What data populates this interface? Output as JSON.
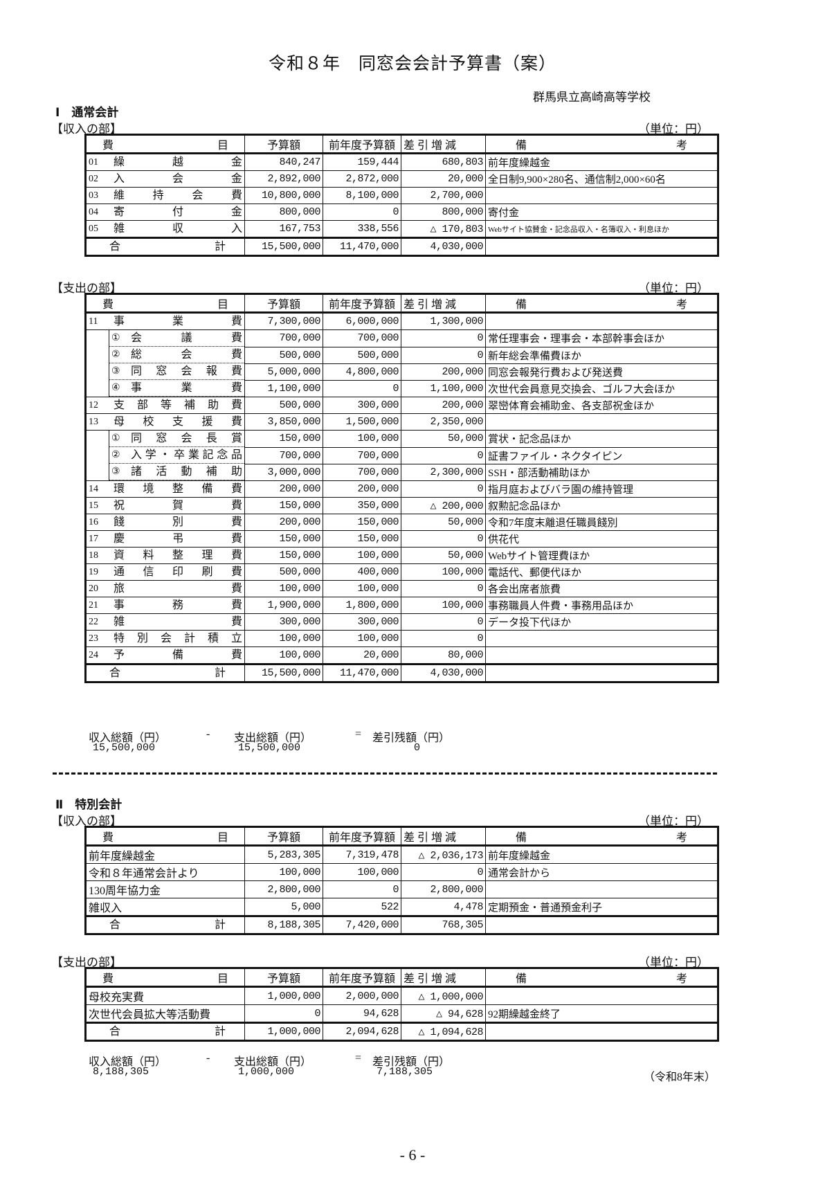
{
  "title": "令和８年　同窓会会計予算書（案）",
  "school": "群馬県立高崎高等学校",
  "headers": [
    "費",
    "目",
    "予算額",
    "前年度予算額",
    "差 引 増 減",
    "備",
    "考"
  ],
  "sections": [
    {
      "heading": "Ⅰ　通常会計",
      "income": {
        "label": "【収入の部】",
        "unit": "（単位：円）",
        "rows": [
          {
            "type": "main",
            "code": "01",
            "name": "繰越金",
            "budget": "840,247",
            "prev": "159,444",
            "diff": "680,803",
            "note": "前年度繰越金"
          },
          {
            "type": "main",
            "code": "02",
            "name": "入会金",
            "budget": "2,892,000",
            "prev": "2,872,000",
            "diff": "20,000",
            "note": "全日制9,900×280名、通信制2,000×60名"
          },
          {
            "type": "main",
            "code": "03",
            "name": "維持会費",
            "budget": "10,800,000",
            "prev": "8,100,000",
            "diff": "2,700,000",
            "note": ""
          },
          {
            "type": "main",
            "code": "04",
            "name": "寄付金",
            "budget": "800,000",
            "prev": "0",
            "diff": "800,000",
            "note": "寄付金"
          },
          {
            "type": "main",
            "code": "05",
            "name": "雑収入",
            "budget": "167,753",
            "prev": "338,556",
            "diff": "△ 170,803",
            "note": "Webサイト協賛金・記念品収入・名簿収入・利息ほか",
            "small": true
          },
          {
            "type": "total",
            "code": "",
            "name": "合計",
            "budget": "15,500,000",
            "prev": "11,470,000",
            "diff": "4,030,000",
            "note": ""
          }
        ]
      },
      "expense": {
        "label": "【支出の部】",
        "unit": "（単位：円）",
        "rows": [
          {
            "type": "main",
            "code": "11",
            "name": "事業費",
            "budget": "7,300,000",
            "prev": "6,000,000",
            "diff": "1,300,000",
            "note": ""
          },
          {
            "type": "sub",
            "code": "①",
            "name": "会議費",
            "budget": "700,000",
            "prev": "700,000",
            "diff": "0",
            "note": "常任理事会・理事会・本部幹事会ほか"
          },
          {
            "type": "sub",
            "code": "②",
            "name": "総会費",
            "budget": "500,000",
            "prev": "500,000",
            "diff": "0",
            "note": "新年総会準備費ほか"
          },
          {
            "type": "sub",
            "code": "③",
            "name": "同窓会報費",
            "budget": "5,000,000",
            "prev": "4,800,000",
            "diff": "200,000",
            "note": "同窓会報発行費および発送費"
          },
          {
            "type": "sub",
            "code": "④",
            "name": "事業費",
            "budget": "1,100,000",
            "prev": "0",
            "diff": "1,100,000",
            "note": "次世代会員意見交換会、ゴルフ大会ほか"
          },
          {
            "type": "main",
            "code": "12",
            "name": "支部等補助費",
            "budget": "500,000",
            "prev": "300,000",
            "diff": "200,000",
            "note": "翠巒体育会補助金、各支部祝金ほか"
          },
          {
            "type": "main",
            "code": "13",
            "name": "母校支援費",
            "budget": "3,850,000",
            "prev": "1,500,000",
            "diff": "2,350,000",
            "note": ""
          },
          {
            "type": "sub",
            "code": "①",
            "name": "同窓会長賞",
            "budget": "150,000",
            "prev": "100,000",
            "diff": "50,000",
            "note": "賞状・記念品ほか"
          },
          {
            "type": "sub",
            "code": "②",
            "name": "入学・卒業記念品",
            "budget": "700,000",
            "prev": "700,000",
            "diff": "0",
            "note": "証書ファイル・ネクタイピン"
          },
          {
            "type": "sub",
            "code": "③",
            "name": "諸活動補助",
            "budget": "3,000,000",
            "prev": "700,000",
            "diff": "2,300,000",
            "note": "SSH・部活動補助ほか"
          },
          {
            "type": "main",
            "code": "14",
            "name": "環境整備費",
            "budget": "200,000",
            "prev": "200,000",
            "diff": "0",
            "note": "指月庭およびバラ園の維持管理"
          },
          {
            "type": "main",
            "code": "15",
            "name": "祝賀費",
            "budget": "150,000",
            "prev": "350,000",
            "diff": "△ 200,000",
            "note": "叙勲記念品ほか"
          },
          {
            "type": "main",
            "code": "16",
            "name": "餞別費",
            "budget": "200,000",
            "prev": "150,000",
            "diff": "50,000",
            "note": "令和7年度末離退任職員餞別"
          },
          {
            "type": "main",
            "code": "17",
            "name": "慶弔費",
            "budget": "150,000",
            "prev": "150,000",
            "diff": "0",
            "note": "供花代"
          },
          {
            "type": "main",
            "code": "18",
            "name": "資料整理費",
            "budget": "150,000",
            "prev": "100,000",
            "diff": "50,000",
            "note": "Webサイト管理費ほか"
          },
          {
            "type": "main",
            "code": "19",
            "name": "通信印刷費",
            "budget": "500,000",
            "prev": "400,000",
            "diff": "100,000",
            "note": "電話代、郵便代ほか"
          },
          {
            "type": "main",
            "code": "20",
            "name": "旅費",
            "budget": "100,000",
            "prev": "100,000",
            "diff": "0",
            "note": "各会出席者旅費"
          },
          {
            "type": "main",
            "code": "21",
            "name": "事務費",
            "budget": "1,900,000",
            "prev": "1,800,000",
            "diff": "100,000",
            "note": "事務職員人件費・事務用品ほか"
          },
          {
            "type": "main",
            "code": "22",
            "name": "雑費",
            "budget": "300,000",
            "prev": "300,000",
            "diff": "0",
            "note": "データ投下代ほか"
          },
          {
            "type": "main",
            "code": "23",
            "name": "特別会計積立",
            "budget": "100,000",
            "prev": "100,000",
            "diff": "0",
            "note": ""
          },
          {
            "type": "main",
            "code": "24",
            "name": "予備費",
            "budget": "100,000",
            "prev": "20,000",
            "diff": "80,000",
            "note": ""
          },
          {
            "type": "total",
            "code": "",
            "name": "合計",
            "budget": "15,500,000",
            "prev": "11,470,000",
            "diff": "4,030,000",
            "note": ""
          }
        ]
      },
      "summary": {
        "labels": [
          "収入総額（円）",
          "-",
          "支出総額（円）",
          "=",
          "差引残額（円）"
        ],
        "values": [
          "15,500,000",
          "15,500,000",
          "0"
        ],
        "note": ""
      }
    },
    {
      "heading": "Ⅱ　特別会計",
      "income": {
        "label": "【収入の部】",
        "unit": "（単位：円）",
        "rows": [
          {
            "type": "plain",
            "code": "",
            "name": "前年度繰越金",
            "budget": "5,283,305",
            "prev": "7,319,478",
            "diff": "△ 2,036,173",
            "note": "前年度繰越金"
          },
          {
            "type": "plain",
            "code": "",
            "name": "令和８年通常会計より",
            "budget": "100,000",
            "prev": "100,000",
            "diff": "0",
            "note": "通常会計から"
          },
          {
            "type": "plain",
            "code": "",
            "name": "130周年協力金",
            "budget": "2,800,000",
            "prev": "0",
            "diff": "2,800,000",
            "note": ""
          },
          {
            "type": "plain",
            "code": "",
            "name": "雑収入",
            "budget": "5,000",
            "prev": "522",
            "diff": "4,478",
            "note": "定期預金・普通預金利子"
          },
          {
            "type": "total",
            "code": "",
            "name": "合計",
            "budget": "8,188,305",
            "prev": "7,420,000",
            "diff": "768,305",
            "note": ""
          }
        ]
      },
      "expense": {
        "label": "【支出の部】",
        "unit": "（単位：円）",
        "rows": [
          {
            "type": "plain",
            "code": "",
            "name": "母校充実費",
            "budget": "1,000,000",
            "prev": "2,000,000",
            "diff": "△ 1,000,000",
            "note": ""
          },
          {
            "type": "plain",
            "code": "",
            "name": "次世代会員拡大等活動費",
            "budget": "0",
            "prev": "94,628",
            "diff": "△ 94,628",
            "note": "92期繰越金終了"
          },
          {
            "type": "total",
            "code": "",
            "name": "合計",
            "budget": "1,000,000",
            "prev": "2,094,628",
            "diff": "△ 1,094,628",
            "note": ""
          }
        ]
      },
      "summary": {
        "labels": [
          "収入総額（円）",
          "-",
          "支出総額（円）",
          "=",
          "差引残額（円）"
        ],
        "values": [
          "8,188,305",
          "1,000,000",
          "7,188,305"
        ],
        "note": "（令和8年末）"
      }
    }
  ],
  "page_number": "- 6 -"
}
